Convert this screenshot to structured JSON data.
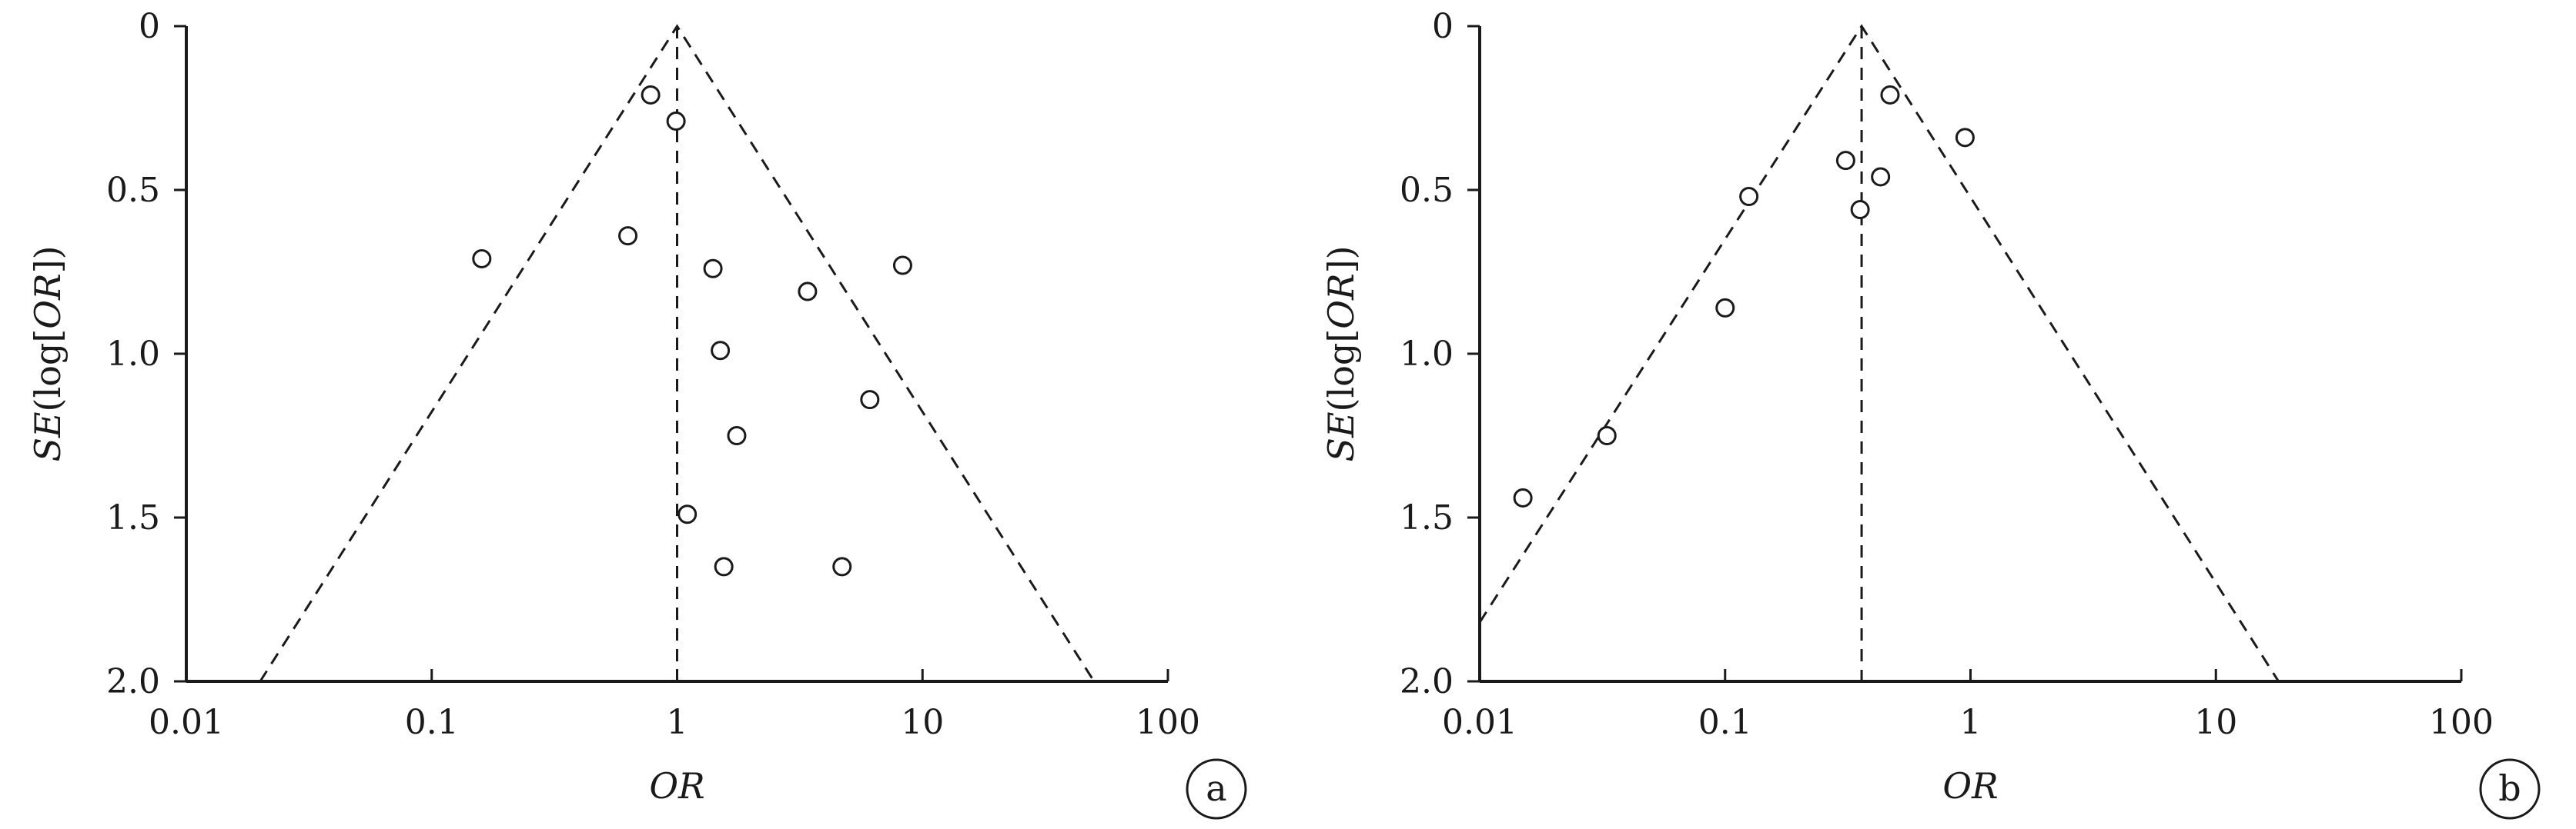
{
  "chart_data": [
    {
      "type": "scatter",
      "panel_label": "a",
      "xlabel": "OR",
      "ylabel_prefix": "SE",
      "ylabel_main": "(log[",
      "ylabel_italic": "OR",
      "ylabel_suffix": "])",
      "x_scale": "log",
      "xlim": [
        0.01,
        100
      ],
      "ylim": [
        0,
        2.0
      ],
      "y_inverted": true,
      "x_ticks": [
        0.01,
        0.1,
        1,
        10,
        100
      ],
      "x_tick_labels": [
        "0.01",
        "0.1",
        "1",
        "10",
        "100"
      ],
      "y_ticks": [
        0,
        0.5,
        1.0,
        1.5,
        2.0
      ],
      "y_tick_labels": [
        "0",
        "0.5",
        "1.0",
        "1.5",
        "2.0"
      ],
      "pooled_or": 1.0,
      "funnel": {
        "apex": [
          1.0,
          0
        ],
        "left": [
          0.02,
          2.0
        ],
        "right": [
          50,
          2.0
        ]
      },
      "points": [
        {
          "x": 0.78,
          "y": 0.21
        },
        {
          "x": 0.99,
          "y": 0.29
        },
        {
          "x": 0.16,
          "y": 0.71
        },
        {
          "x": 0.63,
          "y": 0.64
        },
        {
          "x": 1.4,
          "y": 0.74
        },
        {
          "x": 8.3,
          "y": 0.73
        },
        {
          "x": 3.4,
          "y": 0.81
        },
        {
          "x": 1.5,
          "y": 0.99
        },
        {
          "x": 6.1,
          "y": 1.14
        },
        {
          "x": 1.75,
          "y": 1.25
        },
        {
          "x": 1.1,
          "y": 1.49
        },
        {
          "x": 1.55,
          "y": 1.65
        },
        {
          "x": 4.7,
          "y": 1.65
        }
      ]
    },
    {
      "type": "scatter",
      "panel_label": "b",
      "xlabel": "OR",
      "ylabel_prefix": "SE",
      "ylabel_main": "(log[",
      "ylabel_italic": "OR",
      "ylabel_suffix": "])",
      "x_scale": "log",
      "xlim": [
        0.01,
        100
      ],
      "ylim": [
        0,
        2.0
      ],
      "y_inverted": true,
      "x_ticks": [
        0.01,
        0.1,
        1,
        10,
        100
      ],
      "x_tick_labels": [
        "0.01",
        "0.1",
        "1",
        "10",
        "100"
      ],
      "y_ticks": [
        0,
        0.5,
        1.0,
        1.5,
        2.0
      ],
      "y_tick_labels": [
        "0",
        "0.5",
        "1.0",
        "1.5",
        "2.0"
      ],
      "pooled_or": 0.36,
      "funnel": {
        "apex": [
          0.36,
          0
        ],
        "left": [
          0.01,
          1.82
        ],
        "right": [
          18,
          2.0
        ]
      },
      "points": [
        {
          "x": 0.47,
          "y": 0.21
        },
        {
          "x": 0.95,
          "y": 0.34
        },
        {
          "x": 0.31,
          "y": 0.41
        },
        {
          "x": 0.43,
          "y": 0.46
        },
        {
          "x": 0.125,
          "y": 0.52
        },
        {
          "x": 0.355,
          "y": 0.56
        },
        {
          "x": 0.1,
          "y": 0.86
        },
        {
          "x": 0.033,
          "y": 1.25
        },
        {
          "x": 0.015,
          "y": 1.44
        }
      ]
    }
  ]
}
